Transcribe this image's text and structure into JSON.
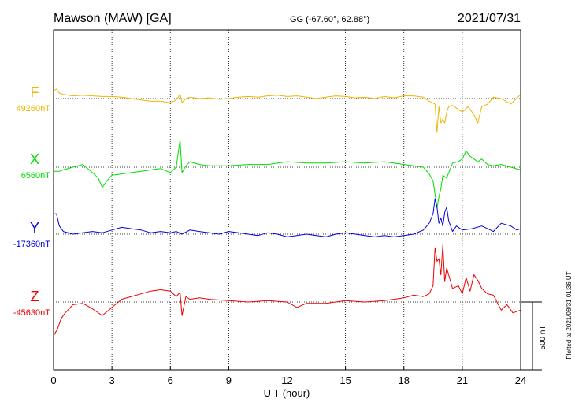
{
  "header": {
    "title": "Mawson (MAW)  [GA]",
    "coords": "GG (-67.60°,  62.88°)",
    "date": "2021/07/31"
  },
  "side_note": "Plotted at 2021/08/31 01:36 UT",
  "scale_label": "500 nT",
  "chart_data": {
    "type": "line",
    "xlabel": "U T (hour)",
    "xlim": [
      0,
      24
    ],
    "xticks": [
      0,
      3,
      6,
      9,
      12,
      15,
      18,
      21,
      24
    ],
    "x_tick_labels": [
      "0",
      "3",
      "6",
      "9",
      "12",
      "15",
      "18",
      "21",
      "24"
    ],
    "grid": "dotted",
    "scale_bar_nT": 500,
    "series": [
      {
        "name": "F",
        "baseline_label": "49260nT",
        "baseline_nT": 49260,
        "color": "#f0b400",
        "x": [
          0,
          0.15,
          0.3,
          0.5,
          1,
          1.5,
          2,
          2.5,
          3,
          3.5,
          4,
          4.5,
          5,
          5.5,
          6,
          6.3,
          6.5,
          6.6,
          6.8,
          7,
          7.5,
          8,
          8.5,
          9,
          9.5,
          10,
          10.5,
          11,
          11.5,
          12,
          12.5,
          13,
          13.5,
          14,
          14.5,
          15,
          15.5,
          16,
          16.5,
          17,
          17.5,
          18,
          18.5,
          19,
          19.3,
          19.6,
          19.7,
          19.8,
          19.9,
          20,
          20.1,
          20.2,
          20.3,
          20.5,
          20.8,
          21,
          21.3,
          21.6,
          21.8,
          22,
          22.3,
          22.6,
          23,
          23.5,
          24
        ],
        "y": [
          60,
          70,
          40,
          30,
          20,
          25,
          20,
          15,
          15,
          10,
          0,
          -10,
          -20,
          -20,
          -30,
          -10,
          30,
          -30,
          0,
          10,
          0,
          5,
          -5,
          0,
          10,
          15,
          10,
          20,
          25,
          15,
          20,
          10,
          0,
          10,
          20,
          15,
          5,
          10,
          0,
          15,
          5,
          20,
          20,
          10,
          -20,
          -40,
          -250,
          -60,
          -180,
          -150,
          -180,
          -100,
          -60,
          -50,
          -80,
          -100,
          -60,
          -120,
          -180,
          -60,
          -40,
          10,
          0,
          -40,
          30
        ]
      },
      {
        "name": "X",
        "baseline_label": "6560nT",
        "baseline_nT": 6560,
        "color": "#00dd00",
        "x": [
          0,
          0.3,
          0.5,
          1,
          1.5,
          2,
          2.3,
          2.5,
          2.8,
          3,
          3.5,
          4,
          4.5,
          5,
          5.5,
          6,
          6.3,
          6.5,
          6.6,
          6.8,
          7,
          7.5,
          8,
          9,
          10,
          11,
          12,
          13,
          14,
          15,
          16,
          17,
          18,
          18.5,
          19,
          19.3,
          19.5,
          19.7,
          19.8,
          19.9,
          20,
          20.2,
          20.5,
          20.8,
          21,
          21.2,
          21.4,
          21.6,
          21.8,
          22,
          22.3,
          22.6,
          23,
          23.5,
          24
        ],
        "y": [
          -30,
          -30,
          -20,
          0,
          20,
          -40,
          -80,
          -150,
          -90,
          -60,
          -50,
          -40,
          -30,
          -20,
          -10,
          -40,
          0,
          200,
          -40,
          10,
          40,
          20,
          10,
          10,
          20,
          20,
          40,
          30,
          30,
          40,
          30,
          40,
          20,
          10,
          0,
          -50,
          -100,
          -300,
          -220,
          -160,
          -60,
          -80,
          30,
          40,
          60,
          120,
          80,
          60,
          40,
          60,
          20,
          10,
          20,
          0,
          -20
        ]
      },
      {
        "name": "Y",
        "baseline_label": "-17360nT",
        "baseline_nT": -17360,
        "color": "#0000dd",
        "x": [
          0,
          0.15,
          0.3,
          0.5,
          1,
          1.5,
          2,
          2.5,
          3,
          3.5,
          4,
          4.5,
          5,
          5.5,
          6,
          6.3,
          6.6,
          7,
          7.5,
          8,
          8.5,
          9,
          9.5,
          10,
          10.5,
          11,
          11.5,
          12,
          12.5,
          13,
          13.5,
          14,
          14.5,
          15,
          15.5,
          16,
          16.5,
          17,
          17.5,
          18,
          18.5,
          19,
          19.3,
          19.5,
          19.6,
          19.7,
          19.8,
          19.9,
          20,
          20.1,
          20.2,
          20.3,
          20.5,
          20.7,
          21,
          21.5,
          22,
          22.3,
          22.6,
          23,
          23.5,
          23.8,
          24
        ],
        "y": [
          150,
          150,
          60,
          20,
          0,
          10,
          20,
          10,
          30,
          50,
          40,
          30,
          10,
          20,
          10,
          20,
          0,
          30,
          20,
          10,
          0,
          20,
          10,
          0,
          -10,
          10,
          0,
          -20,
          -10,
          0,
          -10,
          -20,
          0,
          10,
          0,
          -10,
          -20,
          -10,
          -20,
          -10,
          0,
          30,
          80,
          150,
          260,
          200,
          80,
          120,
          60,
          160,
          200,
          100,
          20,
          60,
          30,
          40,
          60,
          40,
          20,
          80,
          60,
          30,
          40
        ]
      },
      {
        "name": "Z",
        "baseline_label": "-45630nT",
        "baseline_nT": -45630,
        "color": "#ee0000",
        "x": [
          0,
          0.2,
          0.4,
          0.6,
          1,
          1.5,
          2,
          2.5,
          3,
          3.5,
          4,
          4.5,
          5,
          5.5,
          6,
          6.3,
          6.5,
          6.6,
          6.8,
          7,
          7.5,
          8,
          9,
          10,
          11,
          12,
          12.5,
          13,
          14,
          15,
          16,
          17,
          18,
          18.5,
          19,
          19.3,
          19.5,
          19.6,
          19.7,
          19.8,
          19.9,
          20,
          20.1,
          20.2,
          20.3,
          20.5,
          20.8,
          21,
          21.2,
          21.4,
          21.6,
          21.8,
          22,
          22.3,
          22.6,
          23,
          23.3,
          23.6,
          24
        ],
        "y": [
          -250,
          -200,
          -120,
          -80,
          -20,
          -10,
          -50,
          -100,
          -40,
          20,
          40,
          60,
          80,
          90,
          80,
          40,
          70,
          -100,
          40,
          20,
          30,
          20,
          10,
          0,
          10,
          0,
          -40,
          -10,
          -10,
          10,
          0,
          10,
          30,
          50,
          40,
          60,
          120,
          400,
          300,
          320,
          200,
          420,
          150,
          250,
          200,
          100,
          120,
          60,
          180,
          80,
          200,
          160,
          100,
          60,
          50,
          -60,
          -20,
          -80,
          -60
        ]
      }
    ]
  }
}
